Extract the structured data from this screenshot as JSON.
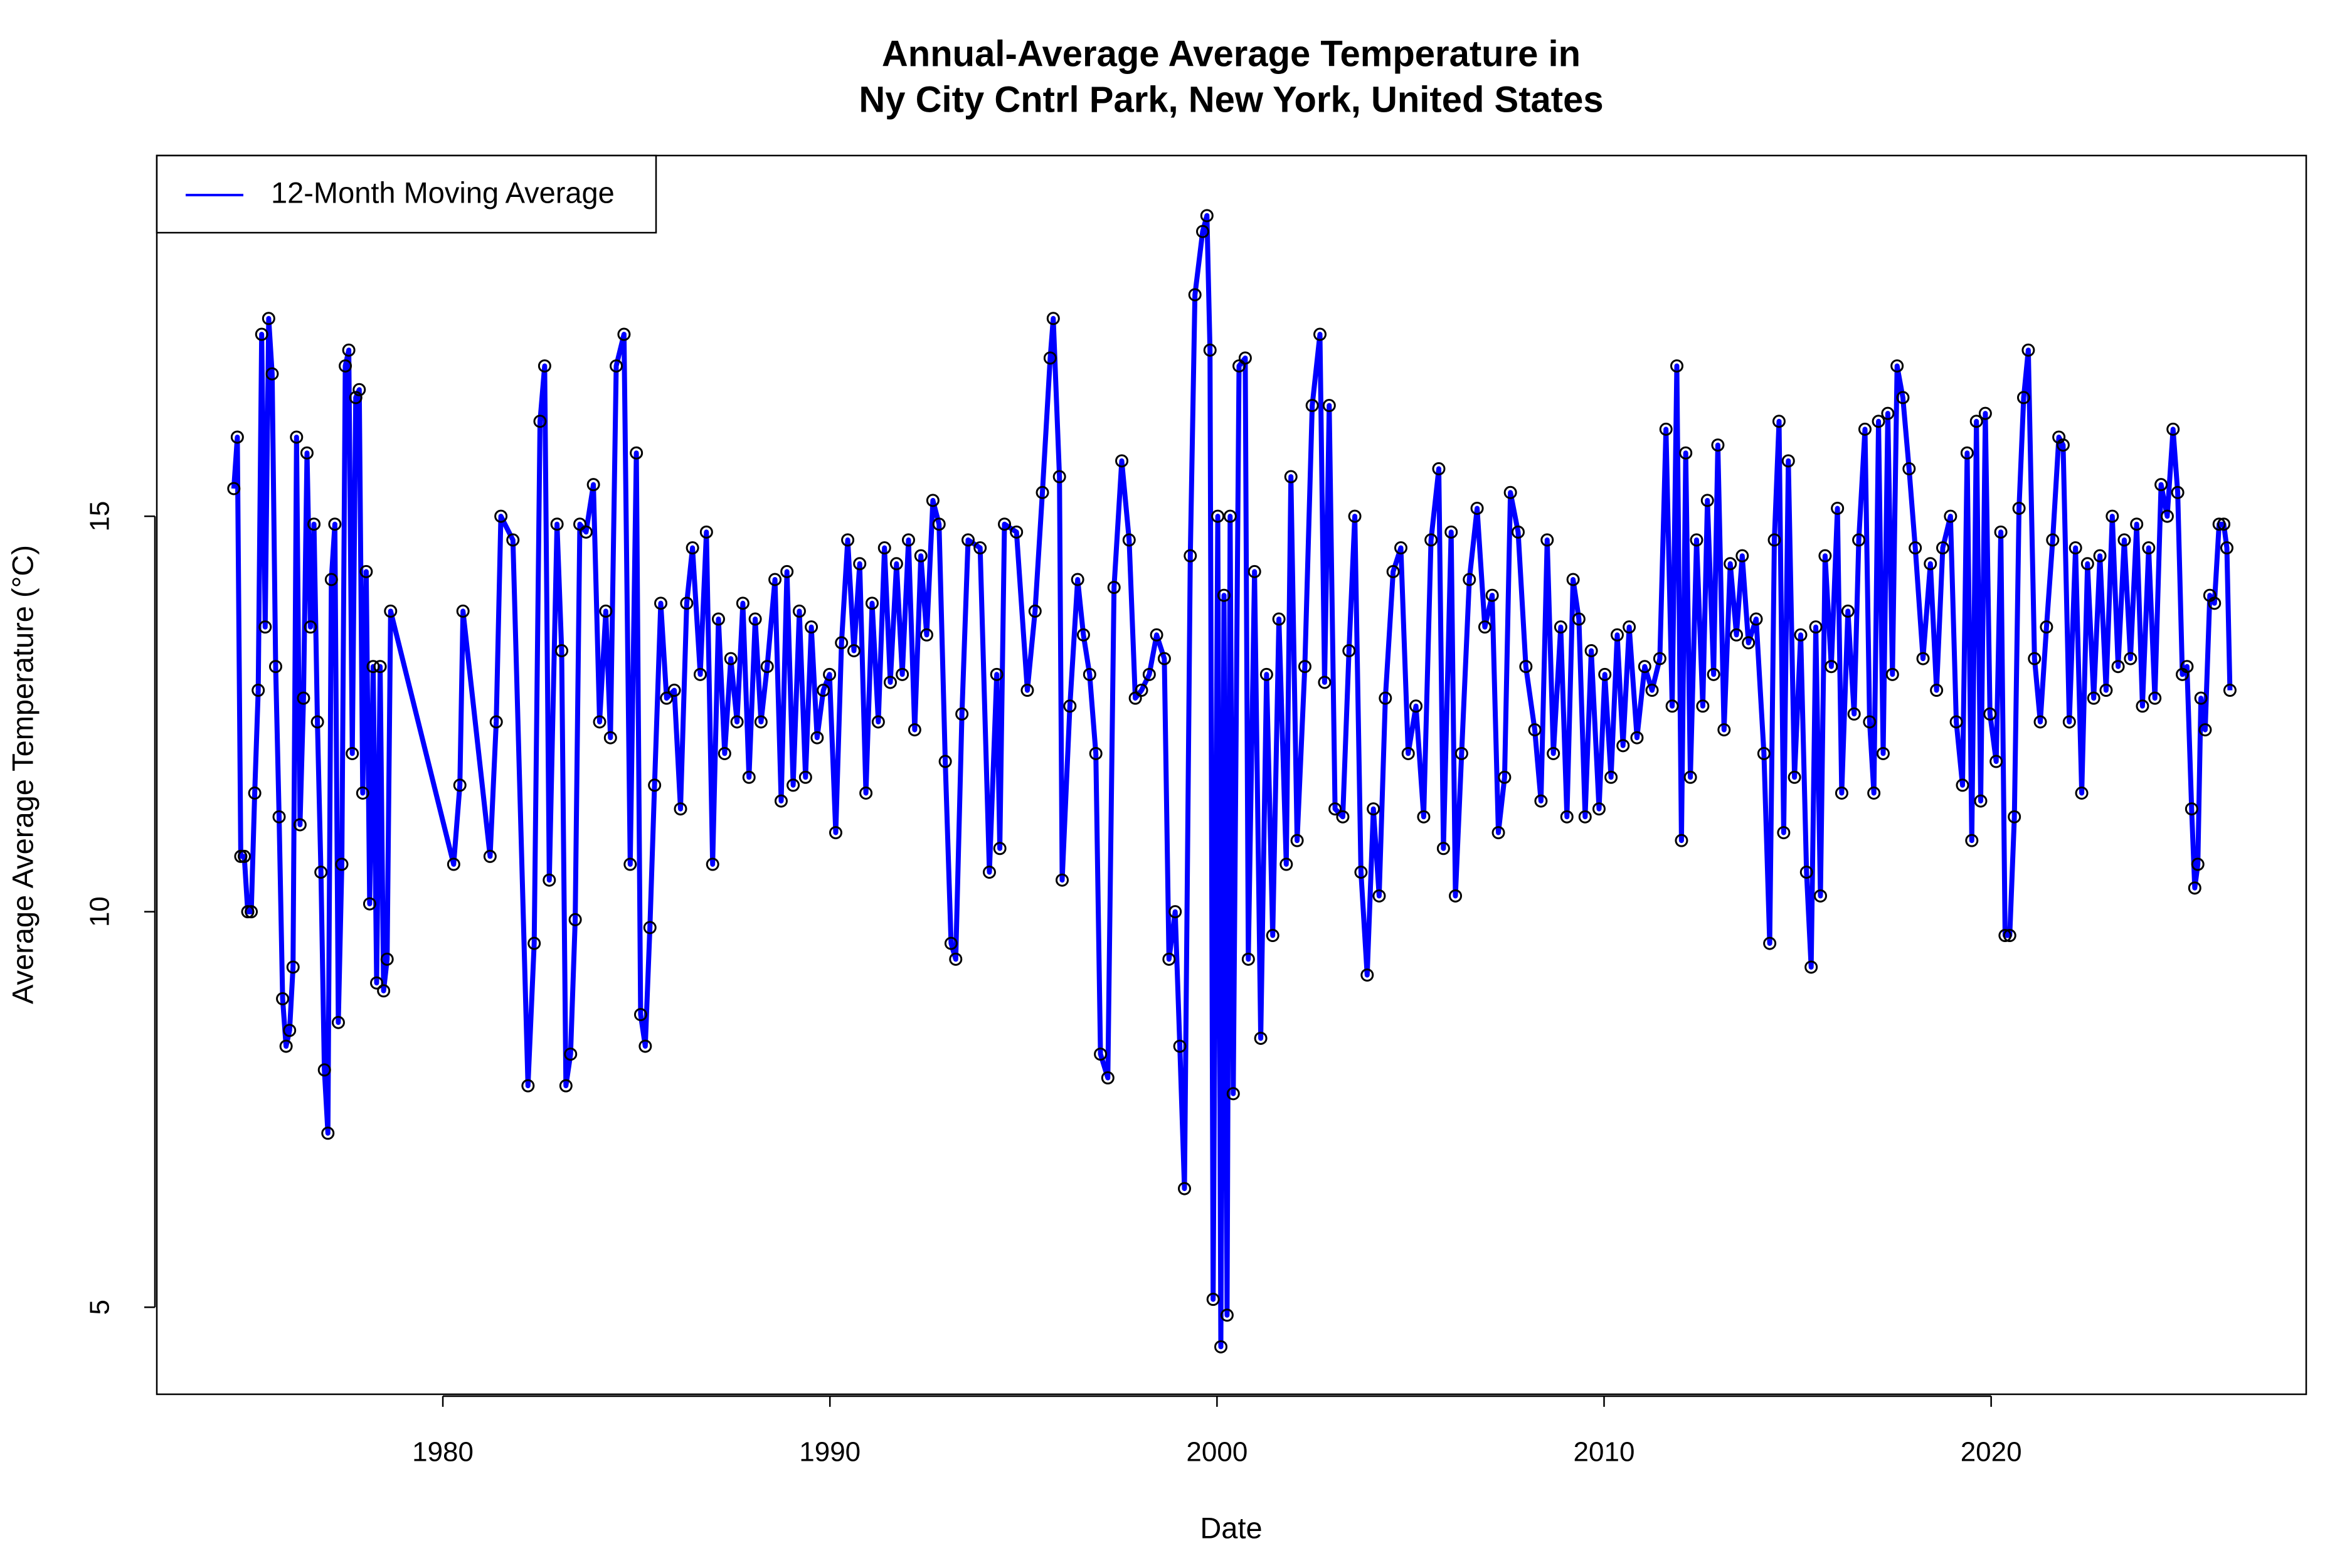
{
  "chart_data": {
    "type": "line",
    "title": "Annual-Average Average Temperature in",
    "subtitle": "Ny City Cntrl Park, New York, United States",
    "x_label": "Date",
    "y_label": "Average Average Temperature (°C)",
    "xlim": [
      1972.61,
      2028.14
    ],
    "xticks": [
      1980,
      1990,
      2000,
      2010,
      2020
    ],
    "ylim": [
      3.9,
      19.56
    ],
    "yticks": [
      5,
      10,
      15
    ],
    "legend": "top-left",
    "markers": true,
    "marker_color": "#000000",
    "x": [
      1974.6,
      1974.69,
      1974.78,
      1974.87,
      1974.96,
      1975.05,
      1975.14,
      1975.23,
      1975.32,
      1975.41,
      1975.5,
      1975.59,
      1975.68,
      1975.77,
      1975.86,
      1975.95,
      1976.04,
      1976.13,
      1976.22,
      1976.31,
      1976.4,
      1976.49,
      1976.58,
      1976.67,
      1976.76,
      1976.85,
      1976.94,
      1977.03,
      1977.12,
      1977.21,
      1977.3,
      1977.39,
      1977.48,
      1977.57,
      1977.66,
      1977.75,
      1977.84,
      1977.93,
      1978.02,
      1978.11,
      1978.2,
      1978.29,
      1978.38,
      1978.47,
      1978.56,
      1978.65,
      1980.28,
      1980.44,
      1980.52,
      1981.22,
      1981.38,
      1981.5,
      1981.81,
      1982.2,
      1982.36,
      1982.51,
      1982.63,
      1982.75,
      1982.95,
      1983.07,
      1983.18,
      1983.3,
      1983.42,
      1983.54,
      1983.7,
      1983.89,
      1984.05,
      1984.21,
      1984.33,
      1984.48,
      1984.68,
      1984.84,
      1985.0,
      1985.11,
      1985.23,
      1985.35,
      1985.47,
      1985.63,
      1985.78,
      1985.98,
      1986.14,
      1986.3,
      1986.45,
      1986.65,
      1986.81,
      1986.97,
      1987.12,
      1987.28,
      1987.44,
      1987.6,
      1987.75,
      1987.91,
      1988.07,
      1988.22,
      1988.38,
      1988.58,
      1988.74,
      1988.89,
      1989.05,
      1989.21,
      1989.37,
      1989.52,
      1989.67,
      1989.83,
      1989.99,
      1990.15,
      1990.3,
      1990.46,
      1990.62,
      1990.77,
      1990.93,
      1991.09,
      1991.25,
      1991.41,
      1991.56,
      1991.72,
      1991.87,
      1992.03,
      1992.19,
      1992.35,
      1992.5,
      1992.66,
      1992.82,
      1992.98,
      1993.13,
      1993.25,
      1993.41,
      1993.57,
      1993.88,
      1994.12,
      1994.31,
      1994.39,
      1994.51,
      1994.82,
      1995.1,
      1995.3,
      1995.49,
      1995.69,
      1995.77,
      1995.93,
      1996.0,
      1996.2,
      1996.4,
      1996.55,
      1996.71,
      1996.87,
      1996.99,
      1997.18,
      1997.34,
      1997.54,
      1997.73,
      1997.89,
      1998.05,
      1998.25,
      1998.44,
      1998.64,
      1998.76,
      1998.92,
      1999.04,
      1999.16,
      1999.31,
      1999.43,
      1999.63,
      1999.74,
      1999.82,
      1999.9,
      2000.02,
      2000.1,
      2000.18,
      2000.26,
      2000.34,
      2000.42,
      2000.57,
      2000.73,
      2000.81,
      2000.97,
      2001.13,
      2001.28,
      2001.44,
      2001.6,
      2001.79,
      2001.91,
      2002.07,
      2002.27,
      2002.46,
      2002.66,
      2002.78,
      2002.9,
      2003.05,
      2003.25,
      2003.41,
      2003.56,
      2003.72,
      2003.88,
      2004.04,
      2004.19,
      2004.35,
      2004.55,
      2004.75,
      2004.94,
      2005.14,
      2005.34,
      2005.53,
      2005.73,
      2005.85,
      2006.05,
      2006.16,
      2006.32,
      2006.52,
      2006.72,
      2006.92,
      2007.11,
      2007.27,
      2007.43,
      2007.58,
      2007.78,
      2007.98,
      2008.21,
      2008.37,
      2008.53,
      2008.69,
      2008.88,
      2009.04,
      2009.2,
      2009.35,
      2009.51,
      2009.67,
      2009.87,
      2010.02,
      2010.18,
      2010.34,
      2010.49,
      2010.65,
      2010.85,
      2011.05,
      2011.24,
      2011.44,
      2011.6,
      2011.76,
      2011.88,
      2012.0,
      2012.11,
      2012.23,
      2012.39,
      2012.55,
      2012.67,
      2012.83,
      2012.94,
      2013.1,
      2013.26,
      2013.42,
      2013.57,
      2013.73,
      2013.93,
      2014.13,
      2014.28,
      2014.4,
      2014.52,
      2014.64,
      2014.76,
      2014.92,
      2015.08,
      2015.23,
      2015.35,
      2015.47,
      2015.59,
      2015.71,
      2015.87,
      2016.03,
      2016.14,
      2016.3,
      2016.46,
      2016.58,
      2016.74,
      2016.86,
      2016.97,
      2017.09,
      2017.21,
      2017.33,
      2017.45,
      2017.57,
      2017.72,
      2017.88,
      2018.04,
      2018.24,
      2018.43,
      2018.59,
      2018.75,
      2018.95,
      2019.1,
      2019.26,
      2019.38,
      2019.5,
      2019.62,
      2019.73,
      2019.85,
      2019.97,
      2020.13,
      2020.25,
      2020.36,
      2020.48,
      2020.6,
      2020.72,
      2020.84,
      2020.96,
      2021.12,
      2021.27,
      2021.43,
      2021.59,
      2021.75,
      2021.86,
      2022.02,
      2022.18,
      2022.34,
      2022.49,
      2022.65,
      2022.81,
      2022.97,
      2023.13,
      2023.28,
      2023.44,
      2023.6,
      2023.76,
      2023.91,
      2024.07,
      2024.23,
      2024.39,
      2024.55,
      2024.7,
      2024.82,
      2024.94,
      2025.06,
      2025.18,
      2025.26,
      2025.34,
      2025.42,
      2025.53,
      2025.65,
      2025.77,
      2025.89,
      2026.01,
      2026.09,
      2026.17
    ],
    "series": [
      {
        "name": "12-Month Moving Average",
        "color": "#0000ff",
        "values": [
          15.35,
          16.0,
          10.7,
          10.7,
          10.0,
          10.0,
          11.5,
          12.8,
          17.3,
          13.6,
          17.5,
          16.8,
          13.1,
          11.2,
          8.9,
          8.3,
          8.5,
          9.3,
          16.0,
          11.1,
          12.7,
          15.8,
          13.6,
          14.9,
          12.4,
          10.5,
          8.0,
          7.2,
          14.2,
          14.9,
          8.6,
          10.6,
          16.9,
          17.1,
          12.0,
          16.5,
          16.6,
          11.5,
          14.3,
          10.1,
          13.1,
          9.1,
          13.1,
          9.0,
          9.4,
          13.8,
          10.6,
          11.6,
          13.8,
          10.7,
          12.4,
          15.0,
          14.7,
          7.8,
          9.6,
          16.2,
          16.9,
          10.4,
          14.9,
          13.3,
          7.8,
          8.2,
          9.9,
          14.9,
          14.8,
          15.4,
          12.4,
          13.8,
          12.2,
          16.9,
          17.3,
          10.6,
          15.8,
          8.7,
          8.3,
          9.8,
          11.6,
          13.9,
          12.7,
          12.8,
          11.3,
          13.9,
          14.6,
          13.0,
          14.8,
          10.6,
          13.7,
          12.0,
          13.2,
          12.4,
          13.9,
          11.7,
          13.7,
          12.4,
          13.1,
          14.2,
          11.4,
          14.3,
          11.6,
          13.8,
          11.7,
          13.6,
          12.2,
          12.8,
          13.0,
          11.0,
          13.4,
          14.7,
          13.3,
          14.4,
          11.5,
          13.9,
          12.4,
          14.6,
          12.9,
          14.4,
          13.0,
          14.7,
          12.3,
          14.5,
          13.5,
          15.2,
          14.9,
          11.9,
          9.6,
          9.4,
          12.5,
          14.7,
          14.6,
          10.5,
          13.0,
          10.8,
          14.9,
          14.8,
          12.8,
          13.8,
          15.3,
          17.0,
          17.5,
          15.5,
          10.4,
          12.6,
          14.2,
          13.5,
          13.0,
          12.0,
          8.2,
          7.9,
          14.1,
          15.7,
          14.7,
          12.7,
          12.8,
          13.0,
          13.5,
          13.2,
          9.4,
          10.0,
          8.3,
          6.5,
          14.5,
          17.8,
          18.6,
          18.8,
          17.1,
          5.1,
          15.0,
          4.5,
          14.0,
          4.9,
          15.0,
          7.7,
          16.9,
          17.0,
          9.4,
          14.3,
          8.4,
          13.0,
          9.7,
          13.7,
          10.6,
          15.5,
          10.9,
          13.1,
          16.4,
          17.3,
          12.9,
          16.4,
          11.3,
          11.2,
          13.3,
          15.0,
          10.5,
          9.2,
          11.3,
          10.2,
          12.7,
          14.3,
          14.6,
          12.0,
          12.6,
          11.2,
          14.7,
          15.6,
          10.8,
          14.8,
          10.2,
          12.0,
          14.2,
          15.1,
          13.6,
          14.0,
          11.0,
          11.7,
          15.3,
          14.8,
          13.1,
          12.3,
          11.4,
          14.7,
          12.0,
          13.6,
          11.2,
          14.2,
          13.7,
          11.2,
          13.3,
          11.3,
          13.0,
          11.7,
          13.5,
          12.1,
          13.6,
          12.2,
          13.1,
          12.8,
          13.2,
          16.1,
          12.6,
          16.9,
          10.9,
          15.8,
          11.7,
          14.7,
          12.6,
          15.2,
          13.0,
          15.9,
          12.3,
          14.4,
          13.5,
          14.5,
          13.4,
          13.7,
          12.0,
          9.6,
          14.7,
          16.2,
          11.0,
          15.7,
          11.7,
          13.5,
          10.5,
          9.3,
          13.6,
          10.2,
          14.5,
          13.1,
          15.1,
          11.5,
          13.8,
          12.5,
          14.7,
          16.1,
          12.4,
          11.5,
          16.2,
          12.0,
          16.3,
          13.0,
          16.9,
          16.5,
          15.6,
          14.6,
          13.2,
          14.4,
          12.8,
          14.6,
          15.0,
          12.4,
          11.6,
          15.8,
          10.9,
          16.2,
          11.4,
          16.3,
          12.5,
          11.9,
          14.8,
          9.7,
          9.7,
          11.2,
          15.1,
          16.5,
          17.1,
          13.2,
          12.4,
          13.6,
          14.7,
          16.0,
          15.9,
          12.4,
          14.6,
          11.5,
          14.4,
          12.7,
          14.5,
          12.8,
          15.0,
          13.1,
          14.7,
          13.2,
          14.9,
          12.6,
          14.6,
          12.7,
          15.4,
          15.0,
          16.1,
          15.3,
          13.0,
          13.1,
          11.3,
          10.3,
          10.6,
          12.7,
          12.3,
          14.0,
          13.9,
          14.9,
          14.9,
          14.6,
          12.8
        ]
      }
    ]
  }
}
